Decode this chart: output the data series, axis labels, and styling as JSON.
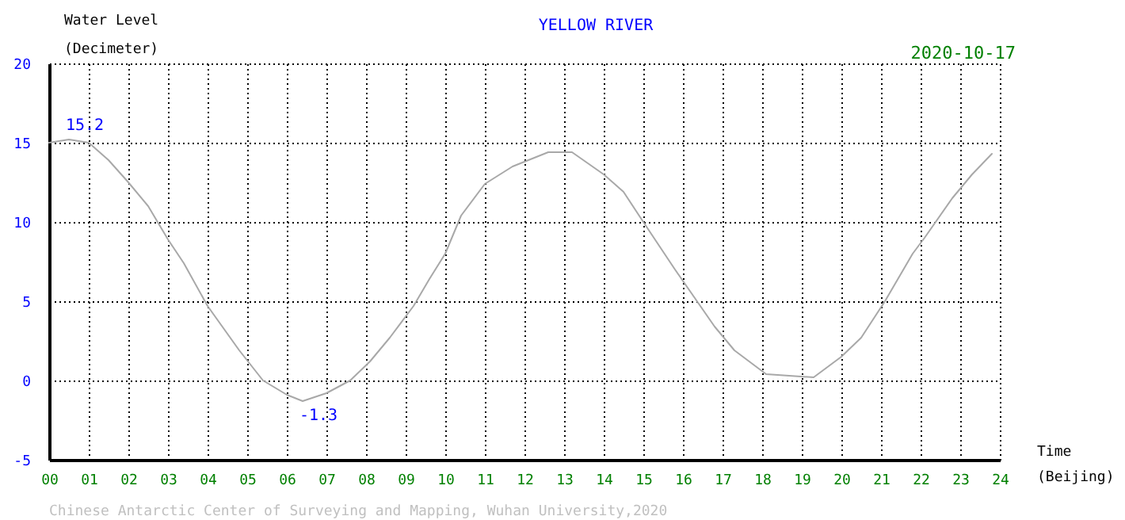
{
  "chart_data": {
    "type": "line",
    "title": "YELLOW RIVER",
    "subtitle": "2020-10-17",
    "xlabel": "Time\n(Beijing)",
    "ylabel": "Water Level\n(Decimeter)",
    "x": [
      0,
      0.5,
      1,
      1.5,
      2,
      2.5,
      3,
      3.4,
      4,
      4.8,
      5.4,
      6,
      6.4,
      7,
      7.6,
      8.1,
      8.6,
      9.2,
      9.6,
      10,
      10.4,
      11,
      11.7,
      12.6,
      13.2,
      14,
      14.5,
      15,
      15.8,
      16.8,
      17.3,
      18.1,
      19.3,
      20,
      20.5,
      21.1,
      21.8,
      22.1,
      22.8,
      23.3,
      23.8
    ],
    "series": [
      {
        "color": "#a8a8a8",
        "values": [
          15.0,
          15.2,
          15.0,
          13.9,
          12.5,
          11.0,
          8.9,
          7.4,
          4.7,
          1.9,
          0.0,
          -0.9,
          -1.3,
          -0.8,
          0.0,
          1.2,
          2.7,
          4.7,
          6.4,
          8.0,
          10.4,
          12.4,
          13.5,
          14.4,
          14.4,
          13.0,
          11.9,
          10.0,
          7.0,
          3.4,
          1.9,
          0.4,
          0.2,
          1.5,
          2.7,
          5.0,
          8.0,
          9.0,
          11.5,
          13.0,
          14.3
        ]
      }
    ],
    "annotations": [
      {
        "text": "15.2",
        "x": 0.5,
        "y": 15.2
      },
      {
        "text": "-1.3",
        "x": 6.4,
        "y": -1.3
      },
      "Chinese Antarctic Center of Surveying and Mapping, Wuhan University,2020"
    ],
    "xlim": [
      0,
      24
    ],
    "ylim": [
      -5,
      20
    ],
    "xticks": [
      {
        "value": 0,
        "label": "00"
      },
      {
        "value": 1,
        "label": "01"
      },
      {
        "value": 2,
        "label": "02"
      },
      {
        "value": 3,
        "label": "03"
      },
      {
        "value": 4,
        "label": "04"
      },
      {
        "value": 5,
        "label": "05"
      },
      {
        "value": 6,
        "label": "06"
      },
      {
        "value": 7,
        "label": "07"
      },
      {
        "value": 8,
        "label": "08"
      },
      {
        "value": 9,
        "label": "09"
      },
      10,
      11,
      12,
      13,
      14,
      15,
      16,
      17,
      18,
      19,
      20,
      21,
      22,
      23,
      24
    ],
    "yticks": [
      -5,
      0,
      5,
      10,
      15,
      20
    ],
    "grid": true,
    "marker": "none",
    "line_style": "solid"
  }
}
